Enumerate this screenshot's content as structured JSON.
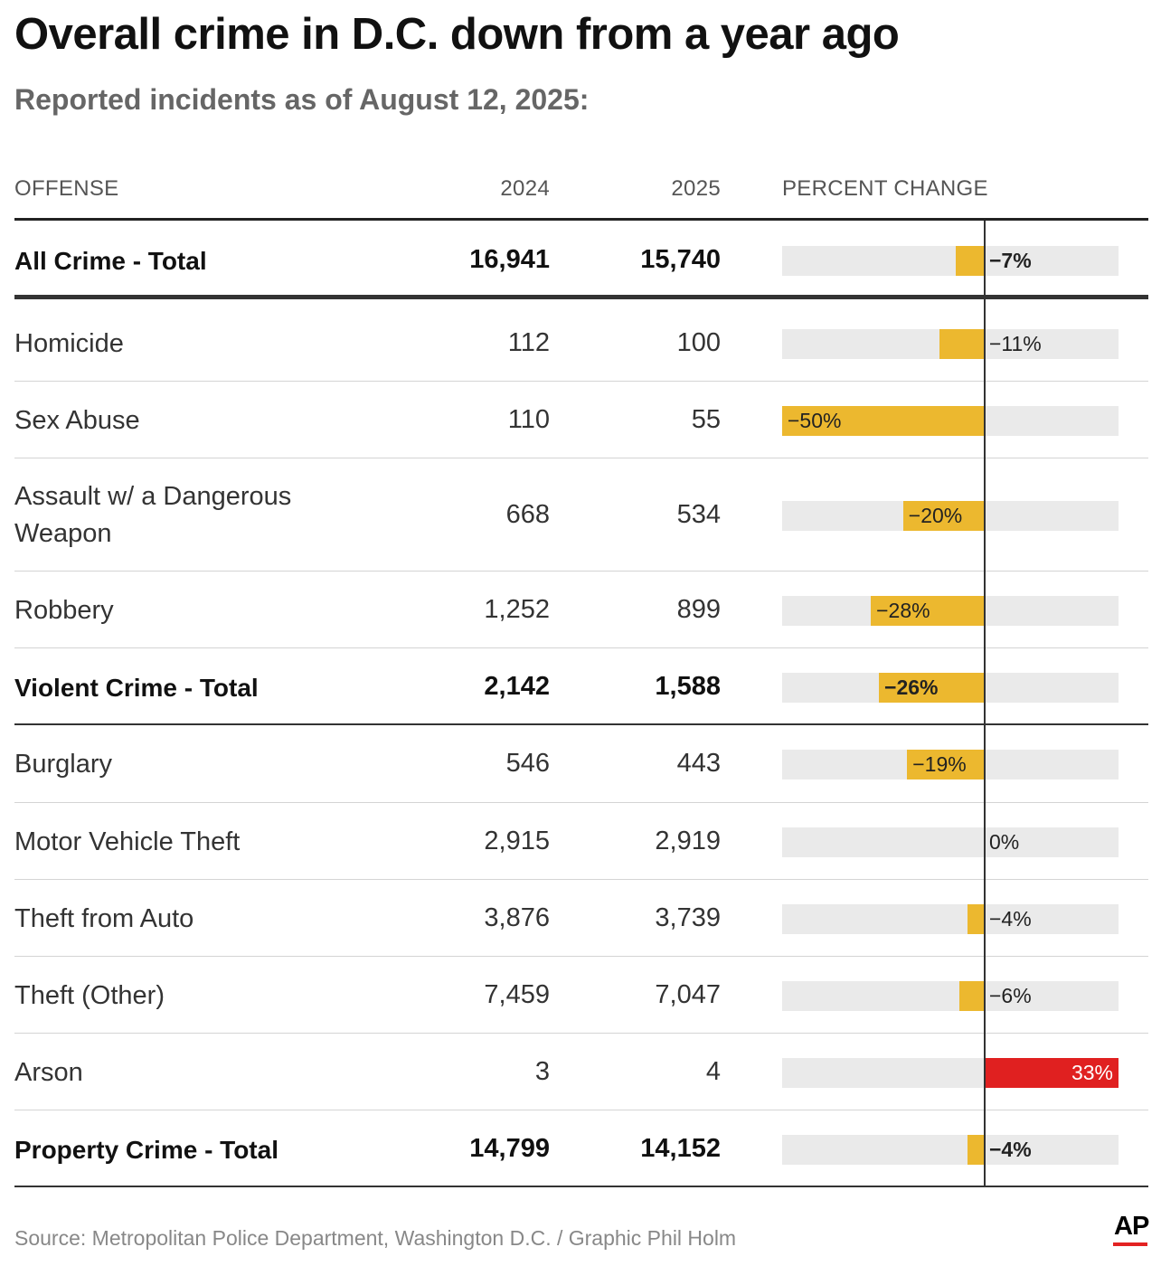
{
  "title": "Overall crime in D.C. down from a year ago",
  "subtitle": "Reported incidents as of August 12, 2025:",
  "columns": {
    "offense": "OFFENSE",
    "y2024": "2024",
    "y2025": "2025",
    "pct": "PERCENT CHANGE"
  },
  "colors": {
    "decrease": "#ecb82f",
    "increase": "#e02020",
    "track": "#eaeaea"
  },
  "chart_data": {
    "type": "table",
    "scale_min_pct": -50,
    "scale_max_pct": 33,
    "rows": [
      {
        "name": "All Crime - Total",
        "v2024": "16,941",
        "v2025": "15,740",
        "pct": -7,
        "label": "−7%",
        "bold": true
      },
      {
        "name": "Homicide",
        "v2024": "112",
        "v2025": "100",
        "pct": -11,
        "label": "−11%",
        "bold": false
      },
      {
        "name": "Sex Abuse",
        "v2024": "110",
        "v2025": "55",
        "pct": -50,
        "label": "−50%",
        "bold": false
      },
      {
        "name": "Assault w/ a Dangerous Weapon",
        "v2024": "668",
        "v2025": "534",
        "pct": -20,
        "label": "−20%",
        "bold": false
      },
      {
        "name": "Robbery",
        "v2024": "1,252",
        "v2025": "899",
        "pct": -28,
        "label": "−28%",
        "bold": false
      },
      {
        "name": "Violent Crime - Total",
        "v2024": "2,142",
        "v2025": "1,588",
        "pct": -26,
        "label": "−26%",
        "bold": true
      },
      {
        "name": "Burglary",
        "v2024": "546",
        "v2025": "443",
        "pct": -19,
        "label": "−19%",
        "bold": false
      },
      {
        "name": "Motor Vehicle Theft",
        "v2024": "2,915",
        "v2025": "2,919",
        "pct": 0,
        "label": "0%",
        "bold": false
      },
      {
        "name": "Theft from Auto",
        "v2024": "3,876",
        "v2025": "3,739",
        "pct": -4,
        "label": "−4%",
        "bold": false
      },
      {
        "name": "Theft (Other)",
        "v2024": "7,459",
        "v2025": "7,047",
        "pct": -6,
        "label": "−6%",
        "bold": false
      },
      {
        "name": "Arson",
        "v2024": "3",
        "v2025": "4",
        "pct": 33,
        "label": "33%",
        "bold": false
      },
      {
        "name": "Property Crime - Total",
        "v2024": "14,799",
        "v2025": "14,152",
        "pct": -4,
        "label": "−4%",
        "bold": true
      }
    ]
  },
  "footer": {
    "source": "Source: Metropolitan Police Department, Washington D.C. / Graphic Phil Holm",
    "logo": "AP"
  }
}
